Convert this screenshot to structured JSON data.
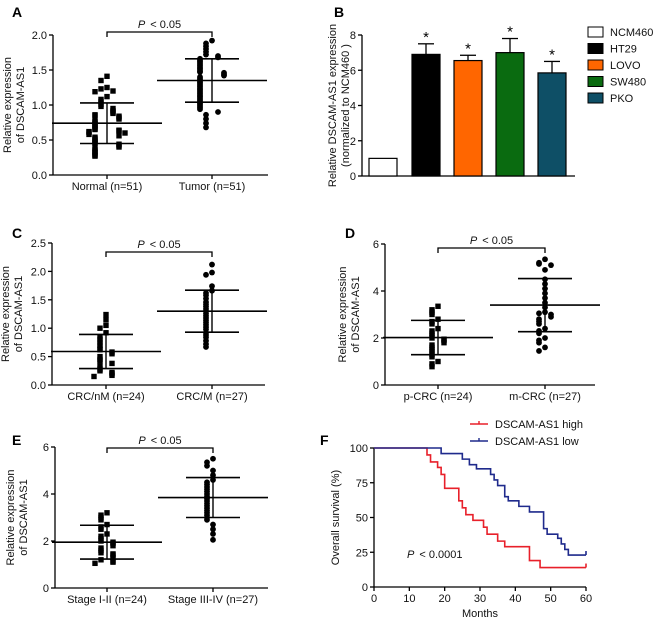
{
  "chart_data": [
    {
      "panel": "A",
      "type": "scatter",
      "ylabel": [
        "Relative expression",
        "of DSCAM-AS1"
      ],
      "ylim": [
        0,
        2.0
      ],
      "yticks": [
        "0.0",
        "0.5",
        "1.0",
        "1.5",
        "2.0"
      ],
      "ytick_values": [
        0,
        0.5,
        1.0,
        1.5,
        2.0
      ],
      "significance": {
        "p_symbol": "P",
        "p_text": "< 0.05"
      },
      "groups": [
        {
          "label": "Normal (n=51)",
          "marker": "square",
          "mean": 0.74,
          "sd": 0.29,
          "values": [
            1.41,
            1.35,
            1.25,
            1.23,
            1.2,
            1.19,
            1.12,
            1.08,
            1.05,
            1.01,
            0.98,
            0.95,
            0.92,
            0.9,
            0.88,
            0.86,
            0.85,
            0.84,
            0.82,
            0.8,
            0.78,
            0.76,
            0.74,
            0.72,
            0.7,
            0.68,
            0.66,
            0.65,
            0.64,
            0.63,
            0.62,
            0.61,
            0.6,
            0.58,
            0.56,
            0.54,
            0.52,
            0.5,
            0.48,
            0.46,
            0.45,
            0.44,
            0.42,
            0.4,
            0.38,
            0.36,
            0.34,
            0.32,
            0.3,
            0.28,
            0.27
          ]
        },
        {
          "label": "Tumor (n=51)",
          "marker": "circle",
          "mean": 1.35,
          "sd": 0.31,
          "values": [
            1.92,
            1.88,
            1.84,
            1.8,
            1.76,
            1.72,
            1.7,
            1.68,
            1.66,
            1.64,
            1.62,
            1.6,
            1.58,
            1.56,
            1.54,
            1.52,
            1.5,
            1.48,
            1.47,
            1.46,
            1.44,
            1.42,
            1.4,
            1.38,
            1.36,
            1.34,
            1.32,
            1.3,
            1.28,
            1.26,
            1.24,
            1.22,
            1.2,
            1.18,
            1.16,
            1.14,
            1.12,
            1.1,
            1.08,
            1.06,
            1.04,
            1.02,
            1.0,
            0.98,
            0.96,
            0.94,
            0.9,
            0.86,
            0.8,
            0.74,
            0.68
          ]
        }
      ]
    },
    {
      "panel": "B",
      "type": "bar",
      "ylabel": [
        "Relative DSCAM-AS1 expression",
        "(normalized to NCM460 )"
      ],
      "ylim": [
        0,
        8
      ],
      "yticks": [
        "0",
        "2",
        "4",
        "6",
        "8"
      ],
      "ytick_values": [
        0,
        2,
        4,
        6,
        8
      ],
      "legend_position": "right",
      "series": [
        {
          "name": "NCM460",
          "value": 1.0,
          "error": 0,
          "color": "#ffffff",
          "star": ""
        },
        {
          "name": "HT29",
          "value": 6.9,
          "error": 0.6,
          "color": "#000000",
          "star": "*"
        },
        {
          "name": "LOVO",
          "value": 6.55,
          "error": 0.3,
          "color": "#ff6600",
          "star": "*"
        },
        {
          "name": "SW480",
          "value": 7.0,
          "error": 0.8,
          "color": "#0a6b10",
          "star": "*"
        },
        {
          "name": "PKO",
          "value": 5.85,
          "error": 0.65,
          "color": "#0e4f66",
          "star": "*"
        }
      ]
    },
    {
      "panel": "C",
      "type": "scatter",
      "ylabel": [
        "Relative expression",
        "of DSCAM-AS1"
      ],
      "ylim": [
        0,
        2.5
      ],
      "yticks": [
        "0.0",
        "0.5",
        "1.0",
        "1.5",
        "2.0",
        "2.5"
      ],
      "ytick_values": [
        0,
        0.5,
        1.0,
        1.5,
        2.0,
        2.5
      ],
      "significance": {
        "p_symbol": "P",
        "p_text": "< 0.05"
      },
      "groups": [
        {
          "label": "CRC/nM (n=24)",
          "marker": "square",
          "mean": 0.59,
          "sd": 0.3,
          "values": [
            1.24,
            1.15,
            1.05,
            1.0,
            0.92,
            0.85,
            0.8,
            0.75,
            0.7,
            0.65,
            0.62,
            0.58,
            0.55,
            0.5,
            0.45,
            0.42,
            0.38,
            0.33,
            0.28,
            0.25,
            0.22,
            0.2,
            0.17,
            0.15
          ]
        },
        {
          "label": "CRC/M (n=27)",
          "marker": "circle",
          "mean": 1.3,
          "sd": 0.37,
          "values": [
            2.12,
            1.98,
            1.94,
            1.74,
            1.66,
            1.62,
            1.58,
            1.52,
            1.46,
            1.42,
            1.38,
            1.34,
            1.3,
            1.26,
            1.22,
            1.18,
            1.14,
            1.1,
            1.06,
            1.02,
            0.98,
            0.92,
            0.88,
            0.84,
            0.78,
            0.72,
            0.67
          ]
        }
      ]
    },
    {
      "panel": "D",
      "type": "scatter",
      "ylabel": [
        "Relative expression",
        "of DSCAM-AS1"
      ],
      "ylim": [
        0,
        6
      ],
      "yticks": [
        "0",
        "2",
        "4",
        "6"
      ],
      "ytick_values": [
        0,
        2,
        4,
        6
      ],
      "significance": {
        "p_symbol": "P",
        "p_text": "< 0.05"
      },
      "groups": [
        {
          "label": "p-CRC (n=24)",
          "marker": "square",
          "mean": 2.02,
          "sd": 0.73,
          "values": [
            3.35,
            3.2,
            3.1,
            3.0,
            2.8,
            2.7,
            2.6,
            2.4,
            2.3,
            2.2,
            2.1,
            2.0,
            1.95,
            1.9,
            1.8,
            1.7,
            1.6,
            1.5,
            1.4,
            1.3,
            1.2,
            1.0,
            0.9,
            0.78
          ]
        },
        {
          "label": "m-CRC (n=27)",
          "marker": "circle",
          "mean": 3.4,
          "sd": 1.13,
          "values": [
            5.35,
            5.2,
            5.15,
            5.1,
            4.9,
            4.5,
            4.3,
            4.1,
            3.9,
            3.7,
            3.5,
            3.3,
            3.1,
            3.05,
            3.0,
            2.9,
            2.8,
            2.7,
            2.6,
            2.4,
            2.3,
            2.2,
            2.0,
            1.9,
            1.8,
            1.6,
            1.45
          ]
        }
      ]
    },
    {
      "panel": "E",
      "type": "scatter",
      "ylabel": [
        "Relative expression",
        "of DSCAM-AS1"
      ],
      "ylim": [
        0,
        6
      ],
      "yticks": [
        "0",
        "2",
        "4",
        "6"
      ],
      "ytick_values": [
        0,
        2,
        4,
        6
      ],
      "significance": {
        "p_symbol": "P",
        "p_text": "< 0.05"
      },
      "groups": [
        {
          "label": "Stage I-II (n=24)",
          "marker": "square",
          "mean": 1.95,
          "sd": 0.72,
          "values": [
            3.2,
            3.1,
            3.0,
            2.9,
            2.7,
            2.6,
            2.5,
            2.3,
            2.2,
            2.1,
            2.0,
            1.95,
            1.9,
            1.8,
            1.7,
            1.6,
            1.5,
            1.45,
            1.4,
            1.3,
            1.2,
            1.15,
            1.1,
            1.05
          ]
        },
        {
          "label": "Stage III-IV (n=27)",
          "marker": "circle",
          "mean": 3.85,
          "sd": 0.85,
          "values": [
            5.5,
            5.35,
            5.2,
            5.0,
            4.8,
            4.6,
            4.5,
            4.4,
            4.3,
            4.2,
            4.1,
            4.0,
            3.9,
            3.8,
            3.7,
            3.6,
            3.5,
            3.4,
            3.3,
            3.2,
            3.1,
            3.0,
            2.9,
            2.7,
            2.5,
            2.3,
            2.05
          ]
        }
      ]
    },
    {
      "panel": "F",
      "type": "line",
      "xlabel": "Months",
      "ylabel": "Overall survival (%)",
      "xlim": [
        0,
        60
      ],
      "ylim": [
        0,
        100
      ],
      "xticks": [
        "0",
        "10",
        "20",
        "30",
        "40",
        "50",
        "60"
      ],
      "xtick_values": [
        0,
        10,
        20,
        30,
        40,
        50,
        60
      ],
      "yticks": [
        "0",
        "25",
        "50",
        "75",
        "100"
      ],
      "ytick_values": [
        0,
        25,
        50,
        75,
        100
      ],
      "legend_position": "top-right",
      "annotation": {
        "p_symbol": "P",
        "p_text": "< 0.0001"
      },
      "series": [
        {
          "name": "DSCAM-AS1 high",
          "color": "#e8202a",
          "steps": [
            [
              0,
              100
            ],
            [
              15,
              95
            ],
            [
              16,
              90
            ],
            [
              18,
              86
            ],
            [
              19,
              81
            ],
            [
              20,
              71
            ],
            [
              24,
              62
            ],
            [
              25,
              57
            ],
            [
              26,
              52
            ],
            [
              28,
              48
            ],
            [
              31,
              43
            ],
            [
              32,
              38
            ],
            [
              35,
              33
            ],
            [
              37,
              29
            ],
            [
              44,
              19
            ],
            [
              47,
              14
            ],
            [
              60,
              14
            ]
          ]
        },
        {
          "name": "DSCAM-AS1 low",
          "color": "#1f2a8c",
          "steps": [
            [
              0,
              100
            ],
            [
              19,
              96
            ],
            [
              25,
              92
            ],
            [
              27,
              88
            ],
            [
              29,
              85
            ],
            [
              33,
              81
            ],
            [
              34,
              77
            ],
            [
              35,
              73
            ],
            [
              37,
              65
            ],
            [
              38,
              62
            ],
            [
              41,
              58
            ],
            [
              44,
              54
            ],
            [
              48,
              42
            ],
            [
              49,
              38
            ],
            [
              52,
              35
            ],
            [
              53,
              31
            ],
            [
              54,
              27
            ],
            [
              55,
              23
            ],
            [
              60,
              23
            ]
          ]
        }
      ]
    }
  ]
}
